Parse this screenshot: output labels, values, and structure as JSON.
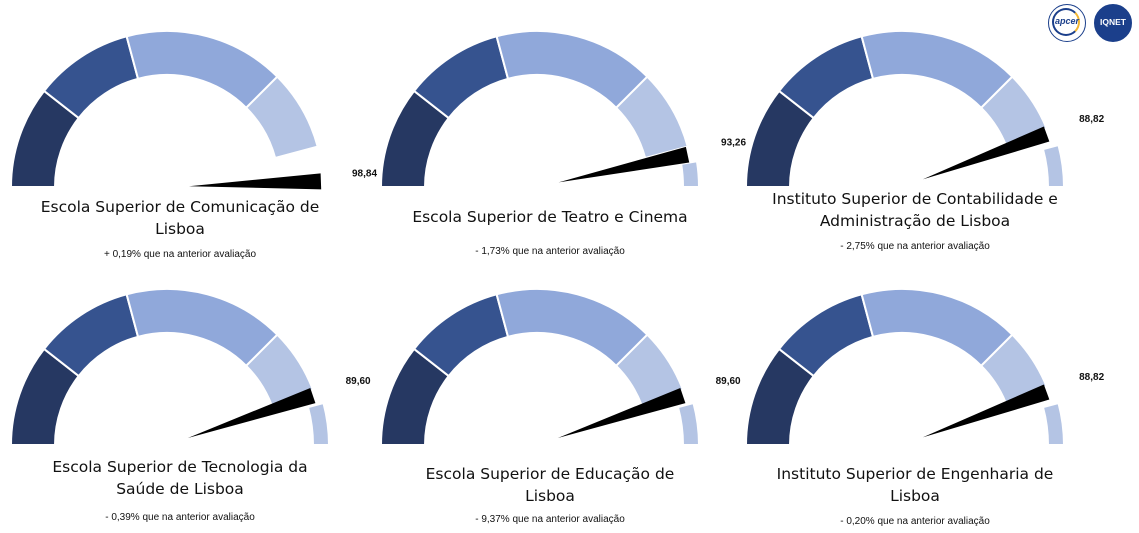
{
  "badges": {
    "apcer": "apcer",
    "iqnet": "IQNET"
  },
  "chart_data": [
    {
      "type": "gauge",
      "title_lines": [
        "Escola Superior de Comunicação de",
        "Lisboa"
      ],
      "value": 98.84,
      "value_label": "98,84",
      "change_label": "+ 0,19% que na anterior avaliação",
      "max": 100
    },
    {
      "type": "gauge",
      "title_lines": [
        "Escola Superior de Teatro e Cinema"
      ],
      "value": 93.26,
      "value_label": "93,26",
      "change_label": "- 1,73% que na anterior avaliação",
      "max": 100
    },
    {
      "type": "gauge",
      "title_lines": [
        "Instituto Superior de Contabilidade e",
        "Administração de Lisboa"
      ],
      "value": 88.82,
      "value_label": "88,82",
      "change_label": "- 2,75% que na anterior avaliação",
      "max": 100
    },
    {
      "type": "gauge",
      "title_lines": [
        "Escola Superior de Tecnologia da",
        "Saúde de Lisboa"
      ],
      "value": 89.6,
      "value_label": "89,60",
      "change_label": "- 0,39% que na anterior avaliação",
      "max": 100
    },
    {
      "type": "gauge",
      "title_lines": [
        "Escola Superior de Educação de",
        "Lisboa"
      ],
      "value": 89.6,
      "value_label": "89,60",
      "change_label": "- 9,37% que na anterior avaliação",
      "max": 100
    },
    {
      "type": "gauge",
      "title_lines": [
        "Instituto Superior de Engenharia de",
        "Lisboa"
      ],
      "value": 88.82,
      "value_label": "88,82",
      "change_label": "- 0,20% que na anterior avaliação",
      "max": 100
    }
  ],
  "gauge_bands": {
    "colors": [
      "#263862",
      "#36538f",
      "#90a8da",
      "#b4c4e4",
      "#b4c4e4"
    ],
    "needle_color": "#000000"
  }
}
